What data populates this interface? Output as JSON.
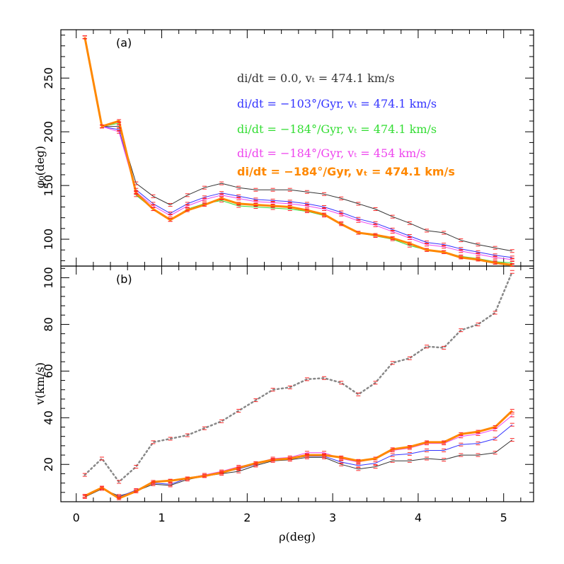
{
  "chart_data": [
    {
      "type": "line",
      "panel_label": "(a)",
      "ylabel": "φ₀(deg)",
      "xlim": [
        -0.18,
        5.35
      ],
      "ylim": [
        75,
        295
      ],
      "yticks": [
        100,
        150,
        200,
        250
      ],
      "x": [
        0.1,
        0.3,
        0.5,
        0.7,
        0.9,
        1.1,
        1.3,
        1.5,
        1.7,
        1.9,
        2.1,
        2.3,
        2.5,
        2.7,
        2.9,
        3.1,
        3.3,
        3.5,
        3.7,
        3.9,
        4.1,
        4.3,
        4.5,
        4.7,
        4.9,
        5.1
      ],
      "legend": [
        {
          "text": "di/dt = 0.0, vₜ = 474.1 km/s",
          "color": "#333333"
        },
        {
          "text": "di/dt = −103°/Gyr, vₜ = 474.1 km/s",
          "color": "#3333ff"
        },
        {
          "text": "di/dt = −184°/Gyr, vₜ = 474.1 km/s",
          "color": "#33dd33"
        },
        {
          "text": "di/dt = −184°/Gyr, vₜ = 454 km/s",
          "color": "#ee44ee"
        },
        {
          "text": "di/dt = −184°/Gyr, vₜ = 474.1 km/s",
          "color": "#ff8800"
        }
      ],
      "series": [
        {
          "color": "#333333",
          "width": 1,
          "values": [
            288,
            205,
            205,
            152,
            140,
            132,
            141,
            148,
            152,
            148,
            146,
            146,
            146,
            144,
            142,
            138,
            133,
            128,
            121,
            115,
            108,
            106,
            99,
            95,
            92,
            89
          ]
        },
        {
          "color": "#3333ff",
          "width": 1,
          "values": [
            288,
            205,
            202,
            146,
            133,
            124,
            133,
            139,
            143,
            140,
            137,
            136,
            135,
            133,
            130,
            125,
            119,
            115,
            109,
            103,
            97,
            95,
            91,
            88,
            85,
            83
          ]
        },
        {
          "color": "#33dd33",
          "width": 1,
          "values": [
            288,
            205,
            208,
            141,
            128,
            118,
            128,
            133,
            136,
            131,
            130,
            129,
            128,
            126,
            122,
            115,
            106,
            103,
            100,
            94,
            90,
            88,
            84,
            82,
            79,
            78
          ]
        },
        {
          "color": "#ee44ee",
          "width": 1,
          "values": [
            288,
            205,
            200,
            144,
            131,
            122,
            131,
            137,
            141,
            138,
            135,
            134,
            133,
            131,
            128,
            123,
            117,
            113,
            107,
            101,
            95,
            93,
            89,
            86,
            83,
            81
          ]
        },
        {
          "color": "#ff8800",
          "width": 3,
          "values": [
            288,
            205,
            210,
            143,
            128,
            118,
            127,
            132,
            138,
            133,
            132,
            131,
            130,
            127,
            123,
            114,
            106,
            104,
            101,
            96,
            90,
            88,
            83,
            81,
            78,
            76
          ]
        }
      ]
    },
    {
      "type": "line",
      "panel_label": "(b)",
      "ylabel": "v(km/s)",
      "xlabel": "ρ(deg)",
      "xlim": [
        -0.18,
        5.35
      ],
      "ylim": [
        4,
        105
      ],
      "yticks": [
        20,
        40,
        60,
        80,
        100
      ],
      "xticks": [
        0,
        1,
        2,
        3,
        4,
        5
      ],
      "x": [
        0.1,
        0.3,
        0.5,
        0.7,
        0.9,
        1.1,
        1.3,
        1.5,
        1.7,
        1.9,
        2.1,
        2.3,
        2.5,
        2.7,
        2.9,
        3.1,
        3.3,
        3.5,
        3.7,
        3.9,
        4.1,
        4.3,
        4.5,
        4.7,
        4.9,
        5.1
      ],
      "series": [
        {
          "color": "#888888",
          "width": 2.5,
          "dashed": true,
          "values": [
            15.5,
            22.5,
            12.5,
            19,
            29.5,
            31,
            32.5,
            35.5,
            38.5,
            43,
            47.5,
            52,
            53,
            56.5,
            57,
            55,
            50,
            55,
            63.5,
            65.5,
            70.5,
            70,
            77.5,
            80,
            85,
            102.5
          ]
        },
        {
          "color": "#333333",
          "width": 1,
          "values": [
            6,
            9.5,
            6.5,
            8.5,
            11.5,
            11,
            13.5,
            15,
            16,
            17,
            19.5,
            21.5,
            22,
            23,
            23,
            20,
            18,
            19,
            21.5,
            21.5,
            22.5,
            22,
            24,
            24,
            25,
            30.5
          ]
        },
        {
          "color": "#3333ff",
          "width": 1,
          "values": [
            6.5,
            10,
            6,
            9,
            12,
            11.5,
            14,
            15.5,
            16.5,
            18,
            20,
            22,
            22.5,
            23.5,
            23.5,
            21,
            19.5,
            20.5,
            24,
            24.5,
            26,
            26,
            28.5,
            29,
            31,
            37
          ]
        },
        {
          "color": "#ee44ee",
          "width": 1,
          "values": [
            6.5,
            10,
            5.5,
            8.5,
            12.5,
            13,
            14,
            15.5,
            17,
            19,
            20.5,
            22.5,
            23,
            25,
            25,
            22.5,
            21,
            22.5,
            26,
            27,
            29,
            29,
            32,
            33,
            35,
            41
          ]
        },
        {
          "color": "#ff8800",
          "width": 3,
          "values": [
            6.5,
            10,
            5.5,
            8.5,
            12.5,
            13,
            14,
            15,
            16.5,
            18.5,
            20.5,
            22,
            22.5,
            24,
            24,
            23,
            21.5,
            22.5,
            26.5,
            27.5,
            29.5,
            29.5,
            33,
            34,
            36,
            43
          ]
        }
      ]
    }
  ]
}
